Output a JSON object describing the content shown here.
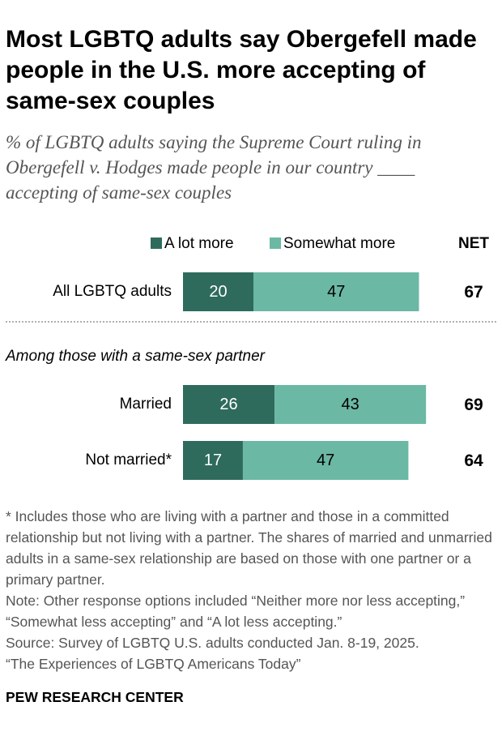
{
  "title": "Most LGBTQ adults say Obergefell made people in the U.S. more accepting of same-sex couples",
  "subtitle": "% of LGBTQ adults saying the Supreme Court ruling in Obergefell v. Hodges made people in our country ____ accepting of same-sex couples",
  "legend": {
    "series1": "A lot more",
    "series2": "Somewhat more",
    "net": "NET"
  },
  "colors": {
    "a_lot_more": "#2e6b5c",
    "somewhat_more": "#6bb8a4",
    "text_light": "#ffffff",
    "text_dark": "#000000"
  },
  "section_label": "Among those with a same-sex partner",
  "chart_data": {
    "type": "bar",
    "orientation": "horizontal-stacked",
    "categories": [
      "All LGBTQ adults",
      "Married",
      "Not married*"
    ],
    "series": [
      {
        "name": "A lot more",
        "values": [
          20,
          26,
          17
        ]
      },
      {
        "name": "Somewhat more",
        "values": [
          47,
          43,
          47
        ]
      }
    ],
    "net": [
      67,
      69,
      64
    ],
    "xlim": [
      0,
      100
    ]
  },
  "notes": {
    "footnote": "* Includes those who are living with a partner and those in a committed relationship but not living with a partner. The shares of married and unmarried adults in a same-sex relationship are based on those with one partner or a primary partner.",
    "note": "Note: Other response options included “Neither more nor less accepting,” “Somewhat less accepting” and “A lot less accepting.”",
    "source": "Source: Survey of LGBTQ U.S. adults conducted Jan. 8-19, 2025.",
    "report": "“The Experiences of LGBTQ Americans Today”"
  },
  "footer": "PEW RESEARCH CENTER"
}
